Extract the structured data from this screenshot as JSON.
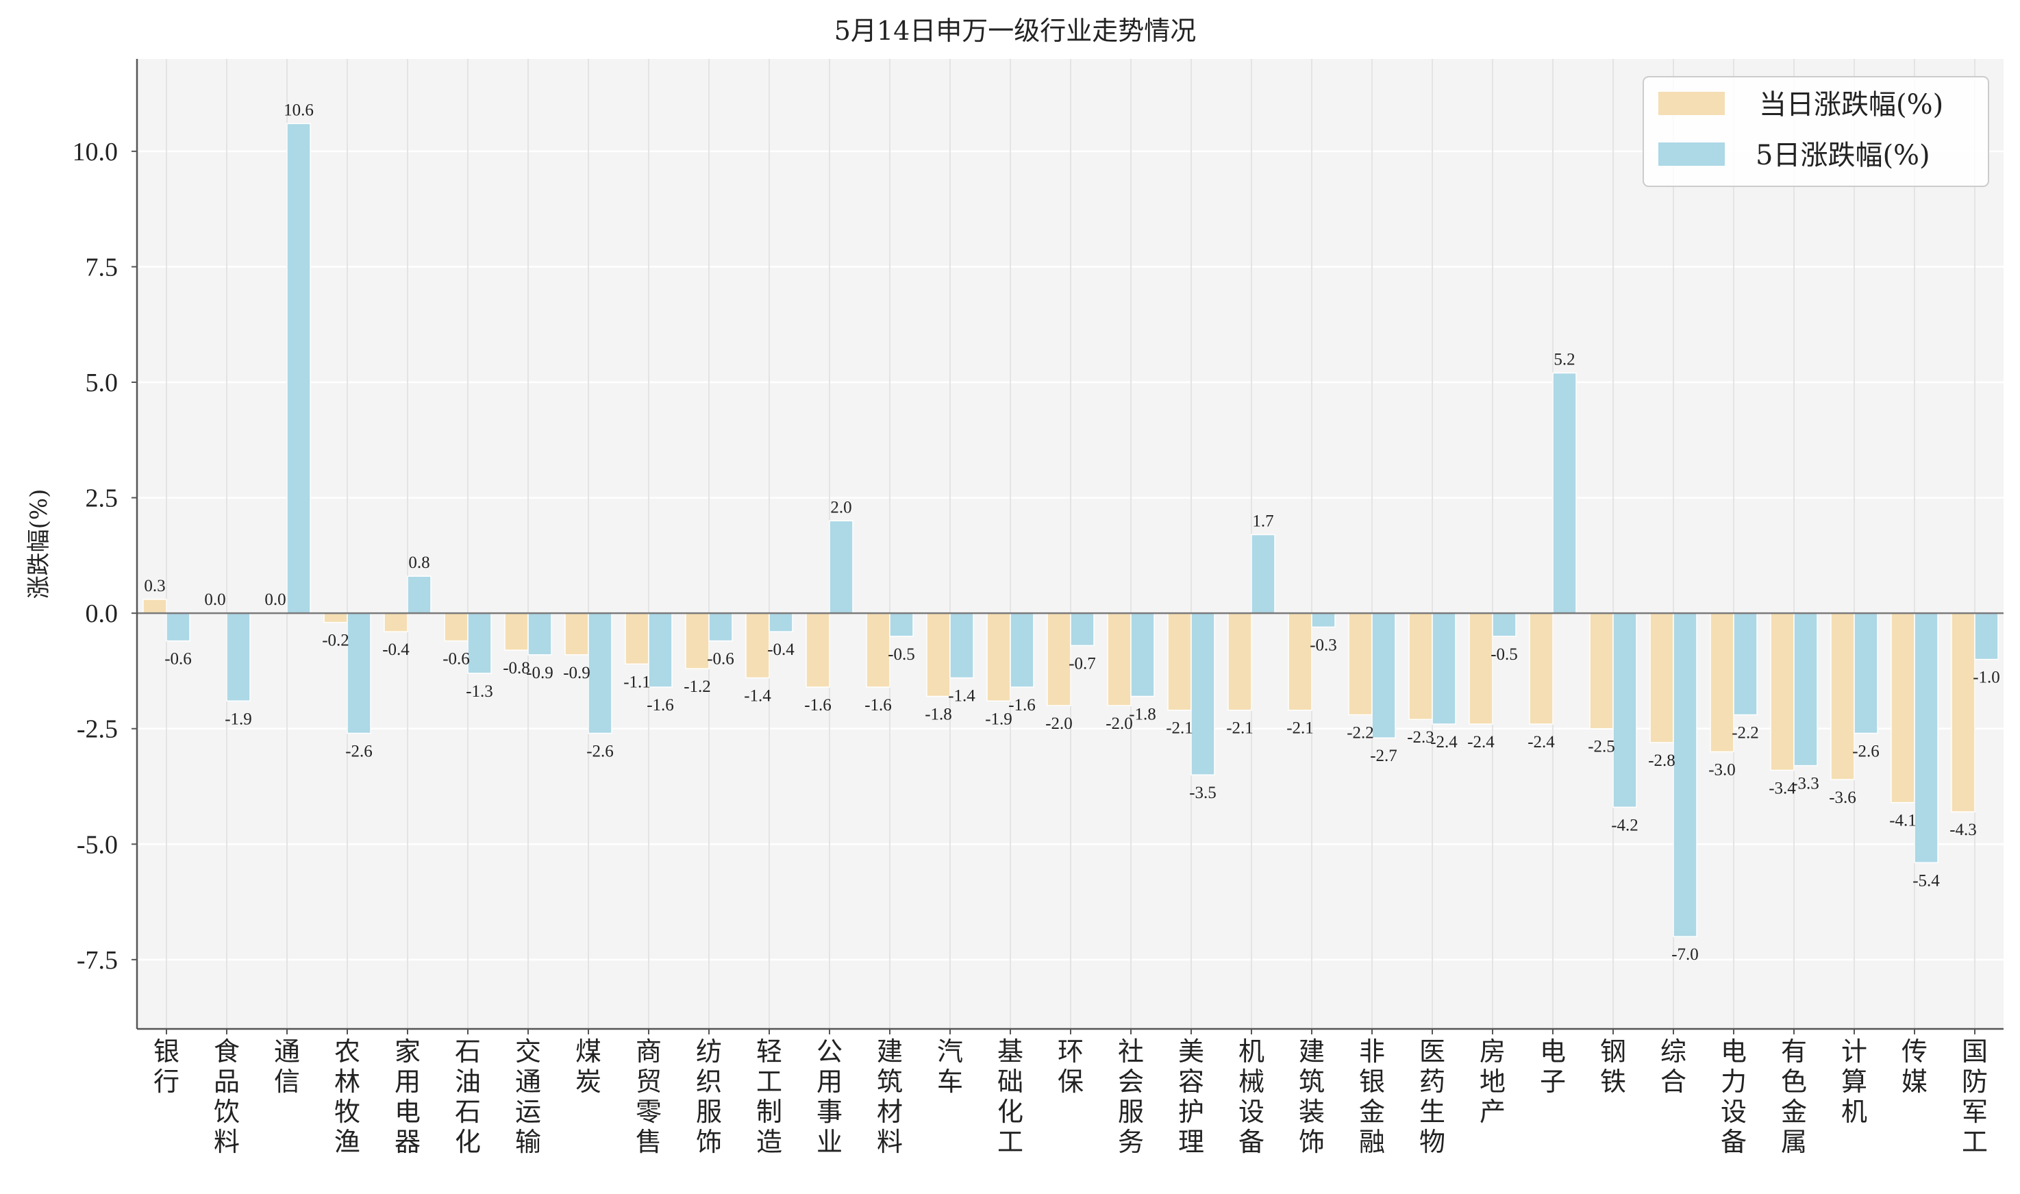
{
  "chart_data": {
    "type": "bar",
    "title": "5月14日申万一级行业走势情况",
    "ylabel": "涨跌幅(%)",
    "xlabel": "",
    "ylim": [
      -9,
      12
    ],
    "yticks": [
      10.0,
      7.5,
      5.0,
      2.5,
      0.0,
      -2.5,
      -5.0,
      -7.5
    ],
    "ytick_labels": [
      "10.0",
      "7.5",
      "5.0",
      "2.5",
      "0.0",
      "-2.5",
      "-5.0",
      "-7.5"
    ],
    "grid": true,
    "legend_position": "top-right",
    "categories": [
      "银行",
      "食品饮料",
      "通信",
      "农林牧渔",
      "家用电器",
      "石油石化",
      "交通运输",
      "煤炭",
      "商贸零售",
      "纺织服饰",
      "轻工制造",
      "公用事业",
      "建筑材料",
      "汽车",
      "基础化工",
      "环保",
      "社会服务",
      "美容护理",
      "机械设备",
      "建筑装饰",
      "非银金融",
      "医药生物",
      "房地产",
      "电子",
      "钢铁",
      "综合",
      "电力设备",
      "有色金属",
      "计算机",
      "传媒",
      "国防军工"
    ],
    "series": [
      {
        "name": "当日涨跌幅(%)",
        "color": "#f5deb3",
        "values": [
          0.3,
          0.0,
          0.0,
          -0.2,
          -0.4,
          -0.6,
          -0.8,
          -0.9,
          -1.1,
          -1.2,
          -1.4,
          -1.6,
          -1.6,
          -1.8,
          -1.9,
          -2.0,
          -2.0,
          -2.1,
          -2.1,
          -2.1,
          -2.2,
          -2.3,
          -2.4,
          -2.4,
          -2.5,
          -2.8,
          -3.0,
          -3.4,
          -3.6,
          -4.1,
          -4.3
        ],
        "labels": [
          "0.3",
          "0.0",
          "0.0",
          "-0.2",
          "-0.4",
          "-0.6",
          "-0.8",
          "-0.9",
          "-1.1",
          "-1.2",
          "-1.4",
          "-1.6",
          "-1.6",
          "-1.8",
          "-1.9",
          "-2.0",
          "-2.0",
          "-2.1",
          "-2.1",
          "-2.1",
          "-2.2",
          "-2.3",
          "-2.4",
          "-2.4",
          "-2.5",
          "-2.8",
          "-3.0",
          "-3.4",
          "-3.6",
          "-4.1",
          "-4.3"
        ]
      },
      {
        "name": "5日涨跌幅(%)",
        "color": "#add8e6",
        "values": [
          -0.6,
          -1.9,
          10.6,
          -2.6,
          0.8,
          -1.3,
          -0.9,
          -2.6,
          -1.6,
          -0.6,
          -0.4,
          2.0,
          -0.5,
          -1.4,
          -1.6,
          -0.7,
          -1.8,
          -3.5,
          1.7,
          -0.3,
          -2.7,
          -2.4,
          -0.5,
          5.2,
          -4.2,
          -7.0,
          -2.2,
          -3.3,
          -2.6,
          -5.4,
          -1.0
        ],
        "labels": [
          "-0.6",
          "-1.9",
          "10.6",
          "-2.6",
          "0.8",
          "-1.3",
          "-0.9",
          "-2.6",
          "-1.6",
          "-0.6",
          "-0.4",
          "2.0",
          "-0.5",
          "-1.4",
          "-1.6",
          "-0.7",
          "-1.8",
          "-3.5",
          "1.7",
          "-0.3",
          "-2.7",
          "-2.4",
          "-0.5",
          "5.2",
          "-4.2",
          "-7.0",
          "-2.2",
          "-3.3",
          "-2.6",
          "-5.4",
          "-1.0"
        ]
      }
    ]
  }
}
